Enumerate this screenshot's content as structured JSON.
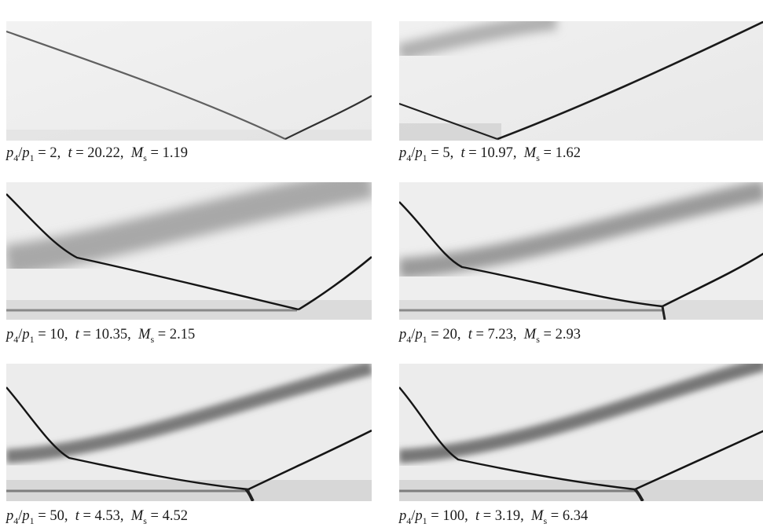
{
  "figure": {
    "panels": [
      {
        "ratio": "2",
        "t": "20.22",
        "Ms": "1.19"
      },
      {
        "ratio": "5",
        "t": "10.97",
        "Ms": "1.62"
      },
      {
        "ratio": "10",
        "t": "10.35",
        "Ms": "2.15"
      },
      {
        "ratio": "20",
        "t": "7.23",
        "Ms": "2.93"
      },
      {
        "ratio": "50",
        "t": "4.53",
        "Ms": "4.52"
      },
      {
        "ratio": "100",
        "t": "3.19",
        "Ms": "6.34"
      }
    ],
    "symbols": {
      "p": "p",
      "sub4": "4",
      "sub1": "1",
      "t": "t",
      "M": "M",
      "subs": "s"
    }
  }
}
